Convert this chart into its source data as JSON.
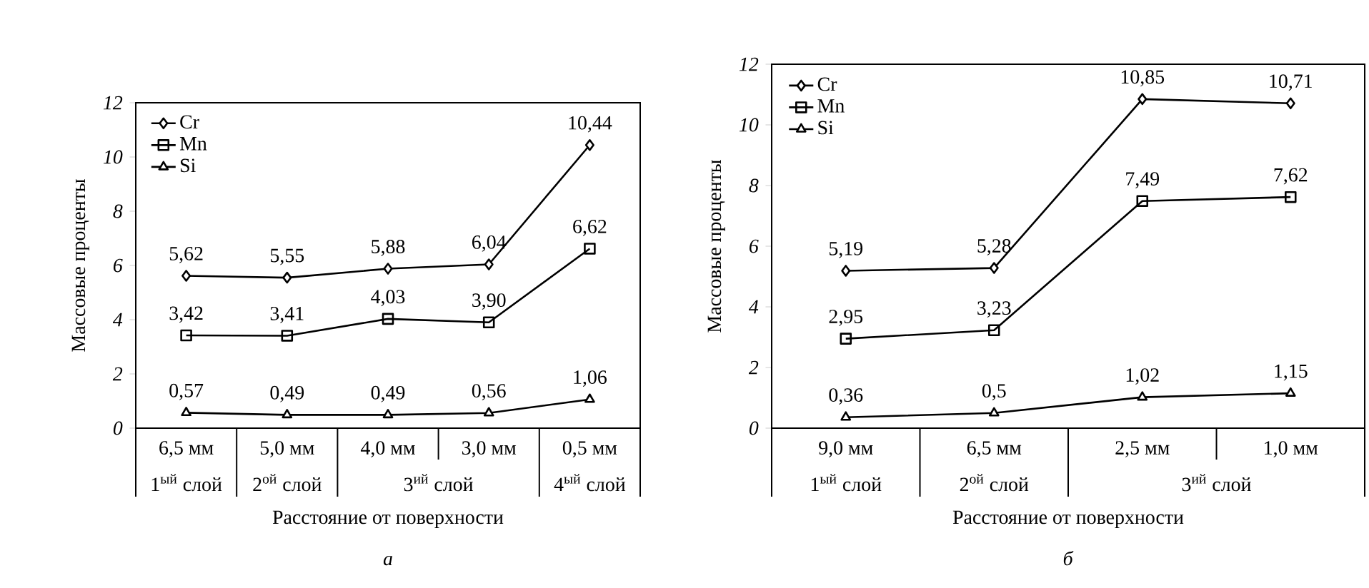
{
  "chart_data": [
    {
      "type": "line",
      "subtitle": "*а*",
      "xlabel": "Расстояние от поверхности",
      "ylabel": "Массовые проценты",
      "categories": [
        "6,5 мм",
        "5,0 мм",
        "4,0 мм",
        "3,0 мм",
        "0,5 мм"
      ],
      "annotations": [
        "1$^{ый}$ слой",
        "2$^{ой}$ слой",
        "3$^{ий}$ слой",
        "4$^{ый}$ слой"
      ],
      "ylim": [
        0,
        12
      ],
      "yticks": [
        0,
        2,
        4,
        6,
        8,
        10,
        12
      ],
      "legend": "top left",
      "grid": false,
      "line_style": "solid",
      "series": [
        {
          "name": "Cr",
          "color": "#000000",
          "marker": "diamond",
          "values": [
            5.62,
            5.55,
            5.88,
            6.04,
            10.44
          ],
          "value_labels": [
            "5,62",
            "5,55",
            "5,88",
            "6,04",
            "10,44"
          ]
        },
        {
          "name": "Mn",
          "color": "#000000",
          "marker": "square",
          "values": [
            3.42,
            3.41,
            4.03,
            3.9,
            6.62
          ],
          "value_labels": [
            "3,42",
            "3,41",
            "4,03",
            "3,90",
            "6,62"
          ]
        },
        {
          "name": "Si",
          "color": "#000000",
          "marker": "triangle",
          "values": [
            0.57,
            0.49,
            0.49,
            0.56,
            1.06
          ],
          "value_labels": [
            "0,57",
            "0,49",
            "0,49",
            "0,56",
            "1,06"
          ]
        }
      ]
    },
    {
      "type": "line",
      "subtitle": "*б*",
      "xlabel": "Расстояние от поверхности",
      "ylabel": "Массовые проценты",
      "categories": [
        "9,0 мм",
        "6,5 мм",
        "2,5 мм",
        "1,0 мм"
      ],
      "annotations": [
        "1$^{ый}$ слой",
        "2$^{ой}$ слой",
        "3$^{ий}$ слой"
      ],
      "ylim": [
        0,
        12
      ],
      "yticks": [
        0,
        2,
        4,
        6,
        8,
        10,
        12
      ],
      "legend": "top left",
      "grid": false,
      "line_style": "solid",
      "series": [
        {
          "name": "Cr",
          "color": "#000000",
          "marker": "diamond",
          "values": [
            5.19,
            5.28,
            10.85,
            10.71
          ],
          "value_labels": [
            "5,19",
            "5,28",
            "10,85",
            "10,71"
          ]
        },
        {
          "name": "Mn",
          "color": "#000000",
          "marker": "square",
          "values": [
            2.95,
            3.23,
            7.49,
            7.62
          ],
          "value_labels": [
            "2,95",
            "3,23",
            "7,49",
            "7,62"
          ]
        },
        {
          "name": "Si",
          "color": "#000000",
          "marker": "triangle",
          "values": [
            0.36,
            0.5,
            1.02,
            1.15
          ],
          "value_labels": [
            "0,36",
            "0,5",
            "1,02",
            "1,15"
          ]
        }
      ]
    }
  ]
}
